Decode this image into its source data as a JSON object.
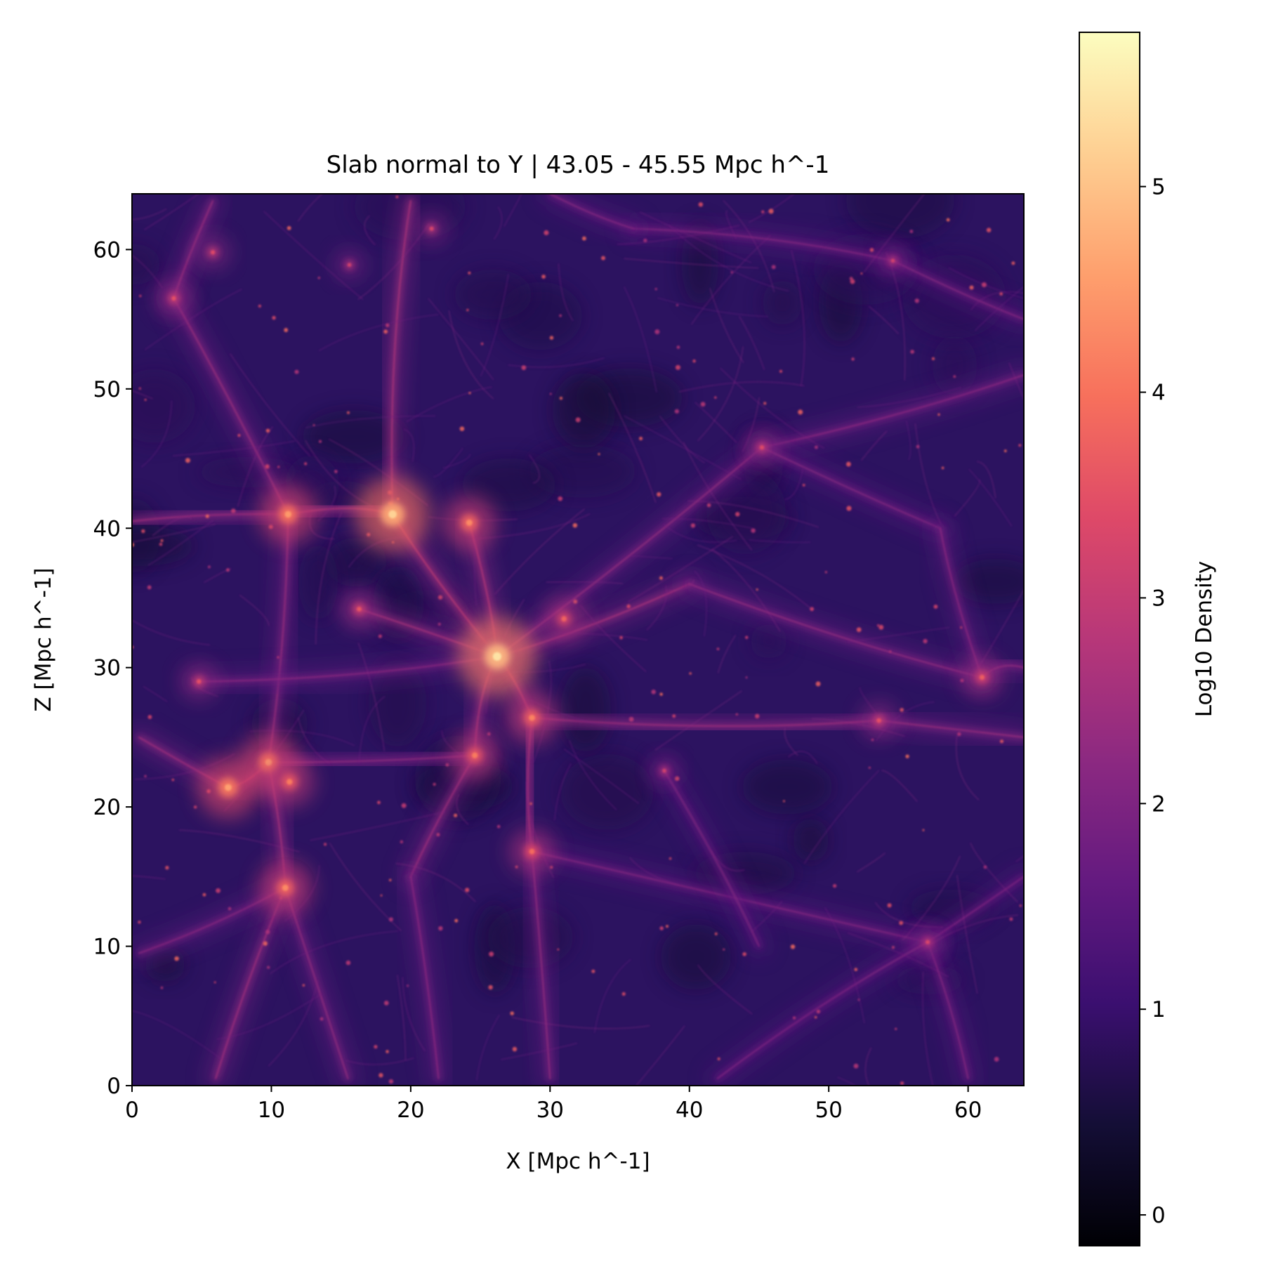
{
  "chart_data": {
    "type": "heatmap",
    "title": "Slab normal to Y | 43.05 - 45.55 Mpc h^-1",
    "xlabel": "X [Mpc h^-1]",
    "ylabel": "Z [Mpc h^-1]",
    "xlim": [
      0,
      64
    ],
    "ylim": [
      0,
      64
    ],
    "xticks": [
      0,
      10,
      20,
      30,
      40,
      50,
      60
    ],
    "yticks": [
      0,
      10,
      20,
      30,
      40,
      50,
      60
    ],
    "colorbar": {
      "label": "Log10 Density",
      "colormap": "magma",
      "range": [
        -0.15,
        5.75
      ],
      "ticks": [
        0,
        1,
        2,
        3,
        4,
        5
      ]
    },
    "density_peaks": [
      {
        "x": 26.2,
        "z": 30.8,
        "log10_density": 5.2
      },
      {
        "x": 18.7,
        "z": 41.0,
        "log10_density": 5.0
      },
      {
        "x": 11.2,
        "z": 41.0,
        "log10_density": 4.3
      },
      {
        "x": 24.2,
        "z": 40.4,
        "log10_density": 4.1
      },
      {
        "x": 6.9,
        "z": 21.4,
        "log10_density": 4.4
      },
      {
        "x": 9.8,
        "z": 23.2,
        "log10_density": 4.3
      },
      {
        "x": 11.3,
        "z": 21.8,
        "log10_density": 3.9
      },
      {
        "x": 11.0,
        "z": 14.2,
        "log10_density": 4.1
      },
      {
        "x": 28.7,
        "z": 26.4,
        "log10_density": 4.0
      },
      {
        "x": 24.6,
        "z": 23.7,
        "log10_density": 3.9
      },
      {
        "x": 28.7,
        "z": 16.8,
        "log10_density": 3.7
      },
      {
        "x": 31.0,
        "z": 33.5,
        "log10_density": 3.6
      },
      {
        "x": 61.0,
        "z": 29.3,
        "log10_density": 3.5
      },
      {
        "x": 53.6,
        "z": 26.2,
        "log10_density": 3.3
      },
      {
        "x": 45.2,
        "z": 45.8,
        "log10_density": 3.2
      },
      {
        "x": 3.0,
        "z": 56.5,
        "log10_density": 3.3
      },
      {
        "x": 5.8,
        "z": 59.8,
        "log10_density": 3.2
      },
      {
        "x": 16.3,
        "z": 34.2,
        "log10_density": 3.4
      },
      {
        "x": 4.8,
        "z": 29.0,
        "log10_density": 3.3
      },
      {
        "x": 57.1,
        "z": 10.3,
        "log10_density": 3.1
      },
      {
        "x": 54.6,
        "z": 59.2,
        "log10_density": 3.0
      },
      {
        "x": 38.2,
        "z": 22.6,
        "log10_density": 3.0
      },
      {
        "x": 21.5,
        "z": 61.5,
        "log10_density": 3.1
      },
      {
        "x": 15.6,
        "z": 58.9,
        "log10_density": 3.0
      }
    ],
    "filaments": [
      {
        "from": [
          26.2,
          30.8
        ],
        "to": [
          18.7,
          41.0
        ],
        "log10_density": 2.7
      },
      {
        "from": [
          26.2,
          30.8
        ],
        "to": [
          24.2,
          40.4
        ],
        "log10_density": 2.6
      },
      {
        "from": [
          26.2,
          30.8
        ],
        "to": [
          40.0,
          36.0
        ],
        "log10_density": 2.4
      },
      {
        "from": [
          26.2,
          30.8
        ],
        "to": [
          28.7,
          26.4
        ],
        "log10_density": 2.6
      },
      {
        "from": [
          28.7,
          26.4
        ],
        "to": [
          28.7,
          16.8
        ],
        "log10_density": 2.4
      },
      {
        "from": [
          26.2,
          30.8
        ],
        "to": [
          24.6,
          23.7
        ],
        "log10_density": 2.5
      },
      {
        "from": [
          24.6,
          23.7
        ],
        "to": [
          20.0,
          15.0
        ],
        "log10_density": 2.3
      },
      {
        "from": [
          26.2,
          30.8
        ],
        "to": [
          16.3,
          34.2
        ],
        "log10_density": 2.4
      },
      {
        "from": [
          18.7,
          41.0
        ],
        "to": [
          11.2,
          41.0
        ],
        "log10_density": 2.5
      },
      {
        "from": [
          11.2,
          41.0
        ],
        "to": [
          0.0,
          40.5
        ],
        "log10_density": 2.3
      },
      {
        "from": [
          18.7,
          41.0
        ],
        "to": [
          20.0,
          63.5
        ],
        "log10_density": 2.5
      },
      {
        "from": [
          11.2,
          41.0
        ],
        "to": [
          3.0,
          56.5
        ],
        "log10_density": 2.2
      },
      {
        "from": [
          3.0,
          56.5
        ],
        "to": [
          5.8,
          63.5
        ],
        "log10_density": 2.2
      },
      {
        "from": [
          11.2,
          41.0
        ],
        "to": [
          9.8,
          23.2
        ],
        "log10_density": 2.2
      },
      {
        "from": [
          9.8,
          23.2
        ],
        "to": [
          6.9,
          21.4
        ],
        "log10_density": 2.6
      },
      {
        "from": [
          6.9,
          21.4
        ],
        "to": [
          0.5,
          25.0
        ],
        "log10_density": 2.3
      },
      {
        "from": [
          9.8,
          23.2
        ],
        "to": [
          11.0,
          14.2
        ],
        "log10_density": 2.4
      },
      {
        "from": [
          11.0,
          14.2
        ],
        "to": [
          6.0,
          0.5
        ],
        "log10_density": 2.3
      },
      {
        "from": [
          11.0,
          14.2
        ],
        "to": [
          15.5,
          0.5
        ],
        "log10_density": 2.1
      },
      {
        "from": [
          11.0,
          14.2
        ],
        "to": [
          0.5,
          9.5
        ],
        "log10_density": 2.0
      },
      {
        "from": [
          9.8,
          23.2
        ],
        "to": [
          24.6,
          23.7
        ],
        "log10_density": 2.1
      },
      {
        "from": [
          26.2,
          30.8
        ],
        "to": [
          4.8,
          29.0
        ],
        "log10_density": 2.0
      },
      {
        "from": [
          28.7,
          26.4
        ],
        "to": [
          53.6,
          26.2
        ],
        "log10_density": 2.3
      },
      {
        "from": [
          53.6,
          26.2
        ],
        "to": [
          64.0,
          25.0
        ],
        "log10_density": 2.2
      },
      {
        "from": [
          40.0,
          36.0
        ],
        "to": [
          61.0,
          29.3
        ],
        "log10_density": 2.1
      },
      {
        "from": [
          61.0,
          29.3
        ],
        "to": [
          64.0,
          30.0
        ],
        "log10_density": 2.1
      },
      {
        "from": [
          26.2,
          30.8
        ],
        "to": [
          45.2,
          45.8
        ],
        "log10_density": 2.1
      },
      {
        "from": [
          45.2,
          45.8
        ],
        "to": [
          64.0,
          51.0
        ],
        "log10_density": 2.0
      },
      {
        "from": [
          45.2,
          45.8
        ],
        "to": [
          58.0,
          40.0
        ],
        "log10_density": 1.9
      },
      {
        "from": [
          58.0,
          40.0
        ],
        "to": [
          61.0,
          29.3
        ],
        "log10_density": 2.0
      },
      {
        "from": [
          36.0,
          61.5
        ],
        "to": [
          54.6,
          59.2
        ],
        "log10_density": 1.9
      },
      {
        "from": [
          54.6,
          59.2
        ],
        "to": [
          64.0,
          55.0
        ],
        "log10_density": 1.9
      },
      {
        "from": [
          30.0,
          64.0
        ],
        "to": [
          36.0,
          61.5
        ],
        "log10_density": 1.9
      },
      {
        "from": [
          28.7,
          16.8
        ],
        "to": [
          30.0,
          0.5
        ],
        "log10_density": 2.1
      },
      {
        "from": [
          28.7,
          16.8
        ],
        "to": [
          57.1,
          10.3
        ],
        "log10_density": 1.9
      },
      {
        "from": [
          57.1,
          10.3
        ],
        "to": [
          64.0,
          15.0
        ],
        "log10_density": 1.8
      },
      {
        "from": [
          57.1,
          10.3
        ],
        "to": [
          60.0,
          0.5
        ],
        "log10_density": 1.9
      },
      {
        "from": [
          42.0,
          0.5
        ],
        "to": [
          57.1,
          10.3
        ],
        "log10_density": 1.8
      },
      {
        "from": [
          20.0,
          15.0
        ],
        "to": [
          22.0,
          0.5
        ],
        "log10_density": 2.0
      },
      {
        "from": [
          38.2,
          22.6
        ],
        "to": [
          45.0,
          10.0
        ],
        "log10_density": 1.8
      }
    ]
  }
}
